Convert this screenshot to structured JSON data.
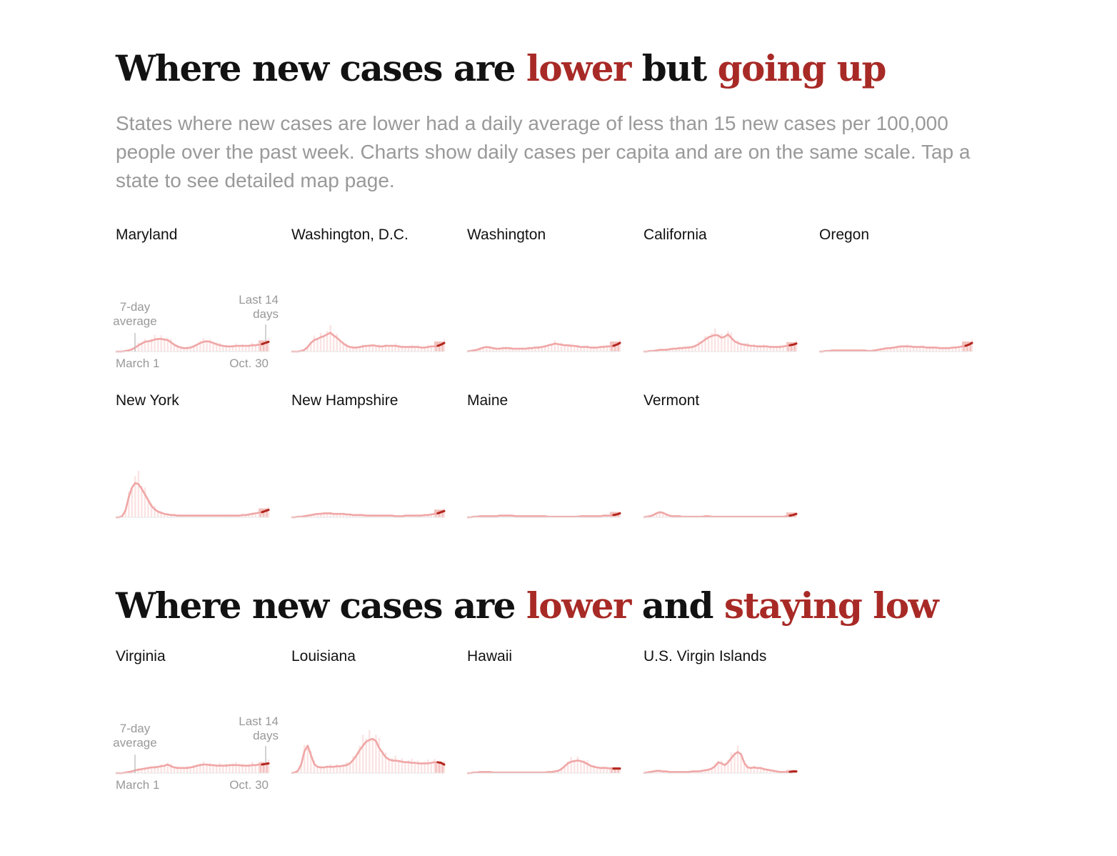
{
  "colors": {
    "accent": "#a82a26",
    "trend": "#f0a6a6",
    "bars": "#fbe3e3",
    "recent": "#b3261e",
    "recent_bg": "#f2c0bc",
    "muted": "#999999",
    "text": "#121212"
  },
  "sections": [
    {
      "title_parts": [
        {
          "text": "Where new cases are ",
          "hl": false
        },
        {
          "text": "lower",
          "hl": true
        },
        {
          "text": " but ",
          "hl": false
        },
        {
          "text": "going up",
          "hl": true
        }
      ],
      "description": "States where new cases are lower had a daily average of less than 15 new cases per 100,000 people over the past week. Charts show daily cases per capita and are on the same scale. Tap a state to see detailed map page."
    },
    {
      "title_parts": [
        {
          "text": "Where new cases are ",
          "hl": false
        },
        {
          "text": "lower",
          "hl": true
        },
        {
          "text": " and ",
          "hl": false
        },
        {
          "text": "staying low",
          "hl": true
        }
      ],
      "description": ""
    }
  ],
  "annotations": {
    "avg_line1": "7-day",
    "avg_line2": "average",
    "recent_line1": "Last 14",
    "recent_line2": "days",
    "start_date": "March 1",
    "end_date": "Oct. 30"
  },
  "chart_data": [
    {
      "type": "area",
      "state": "Maryland",
      "section": 0,
      "x_start": "March 1",
      "x_end": "Oct. 30",
      "ylim": [
        0,
        100
      ],
      "values": [
        0,
        0,
        0,
        1,
        2,
        4,
        7,
        11,
        14,
        17,
        18,
        19,
        21,
        22,
        22,
        21,
        20,
        16,
        12,
        9,
        7,
        6,
        6,
        7,
        9,
        12,
        15,
        17,
        18,
        17,
        15,
        13,
        11,
        10,
        9,
        9,
        9,
        10,
        10,
        10,
        10,
        10,
        11,
        11,
        12,
        13,
        15,
        17
      ]
    },
    {
      "type": "area",
      "state": "Washington, D.C.",
      "section": 0,
      "x_start": "March 1",
      "x_end": "Oct. 30",
      "ylim": [
        0,
        100
      ],
      "values": [
        0,
        0,
        0,
        1,
        3,
        8,
        15,
        20,
        22,
        25,
        27,
        30,
        33,
        28,
        24,
        19,
        14,
        10,
        8,
        7,
        7,
        8,
        9,
        10,
        10,
        11,
        10,
        9,
        9,
        10,
        10,
        10,
        10,
        9,
        8,
        8,
        8,
        8,
        8,
        8,
        7,
        7,
        8,
        9,
        9,
        10,
        12,
        15
      ]
    },
    {
      "type": "area",
      "state": "Washington",
      "section": 0,
      "x_start": "March 1",
      "x_end": "Oct. 30",
      "ylim": [
        0,
        100
      ],
      "values": [
        0,
        1,
        2,
        3,
        5,
        7,
        8,
        7,
        6,
        5,
        5,
        6,
        6,
        6,
        5,
        5,
        5,
        5,
        5,
        6,
        6,
        7,
        7,
        8,
        9,
        11,
        12,
        14,
        13,
        12,
        11,
        11,
        10,
        10,
        9,
        8,
        8,
        8,
        7,
        7,
        7,
        8,
        8,
        9,
        9,
        10,
        12,
        15
      ]
    },
    {
      "type": "area",
      "state": "California",
      "section": 0,
      "x_start": "March 1",
      "x_end": "Oct. 30",
      "ylim": [
        0,
        100
      ],
      "values": [
        0,
        0,
        1,
        1,
        2,
        3,
        3,
        3,
        4,
        5,
        5,
        6,
        6,
        7,
        7,
        8,
        10,
        13,
        17,
        21,
        25,
        27,
        29,
        28,
        24,
        26,
        30,
        24,
        18,
        15,
        13,
        12,
        11,
        10,
        10,
        9,
        9,
        9,
        9,
        8,
        8,
        8,
        8,
        9,
        10,
        11,
        12,
        14
      ]
    },
    {
      "type": "area",
      "state": "Oregon",
      "section": 0,
      "x_start": "March 1",
      "x_end": "Oct. 30",
      "ylim": [
        0,
        100
      ],
      "values": [
        0,
        0,
        1,
        1,
        2,
        2,
        2,
        2,
        2,
        2,
        2,
        2,
        2,
        2,
        2,
        1,
        1,
        2,
        3,
        4,
        5,
        6,
        6,
        7,
        8,
        9,
        9,
        9,
        9,
        8,
        8,
        8,
        8,
        7,
        7,
        7,
        7,
        6,
        6,
        6,
        6,
        7,
        7,
        8,
        9,
        10,
        12,
        15
      ]
    },
    {
      "type": "area",
      "state": "New York",
      "section": 0,
      "x_start": "March 1",
      "x_end": "Oct. 30",
      "ylim": [
        0,
        100
      ],
      "values": [
        0,
        0,
        2,
        12,
        35,
        52,
        60,
        58,
        50,
        40,
        30,
        20,
        14,
        10,
        8,
        6,
        5,
        4,
        4,
        3,
        3,
        3,
        3,
        3,
        3,
        3,
        3,
        3,
        3,
        3,
        3,
        3,
        3,
        3,
        3,
        3,
        3,
        3,
        3,
        4,
        4,
        5,
        6,
        7,
        8,
        9,
        11,
        13
      ]
    },
    {
      "type": "area",
      "state": "New Hampshire",
      "section": 0,
      "x_start": "March 1",
      "x_end": "Oct. 30",
      "ylim": [
        0,
        100
      ],
      "values": [
        0,
        0,
        1,
        1,
        2,
        3,
        4,
        5,
        6,
        6,
        7,
        7,
        7,
        6,
        6,
        6,
        6,
        5,
        5,
        4,
        4,
        4,
        4,
        3,
        3,
        3,
        3,
        3,
        3,
        3,
        3,
        3,
        2,
        2,
        2,
        3,
        3,
        3,
        3,
        3,
        3,
        4,
        4,
        5,
        6,
        7,
        9,
        11
      ]
    },
    {
      "type": "area",
      "state": "Maine",
      "section": 0,
      "x_start": "March 1",
      "x_end": "Oct. 30",
      "ylim": [
        0,
        100
      ],
      "values": [
        0,
        0,
        1,
        1,
        2,
        2,
        2,
        2,
        2,
        2,
        3,
        3,
        3,
        3,
        3,
        2,
        2,
        2,
        2,
        2,
        2,
        2,
        2,
        2,
        2,
        1,
        1,
        1,
        1,
        1,
        1,
        1,
        1,
        1,
        1,
        2,
        2,
        2,
        2,
        2,
        2,
        2,
        3,
        3,
        3,
        4,
        5,
        7
      ]
    },
    {
      "type": "area",
      "state": "Vermont",
      "section": 0,
      "x_start": "March 1",
      "x_end": "Oct. 30",
      "ylim": [
        0,
        100
      ],
      "values": [
        0,
        1,
        2,
        4,
        7,
        9,
        8,
        5,
        3,
        2,
        2,
        2,
        1,
        1,
        1,
        1,
        1,
        1,
        1,
        2,
        2,
        1,
        1,
        1,
        1,
        1,
        1,
        1,
        1,
        1,
        1,
        1,
        1,
        1,
        1,
        1,
        1,
        1,
        1,
        1,
        1,
        1,
        1,
        1,
        2,
        3,
        4,
        6
      ]
    },
    {
      "type": "area",
      "state": "Virginia",
      "section": 1,
      "x_start": "March 1",
      "x_end": "Oct. 30",
      "ylim": [
        0,
        100
      ],
      "values": [
        0,
        0,
        0,
        1,
        2,
        3,
        5,
        6,
        7,
        8,
        9,
        10,
        10,
        11,
        12,
        13,
        15,
        12,
        10,
        9,
        9,
        9,
        9,
        10,
        11,
        13,
        14,
        15,
        15,
        14,
        14,
        13,
        13,
        13,
        13,
        14,
        14,
        14,
        14,
        13,
        13,
        13,
        14,
        14,
        15,
        15,
        16,
        17
      ]
    },
    {
      "type": "area",
      "state": "Louisiana",
      "section": 1,
      "x_start": "March 1",
      "x_end": "Oct. 30",
      "ylim": [
        0,
        100
      ],
      "values": [
        0,
        1,
        4,
        15,
        38,
        48,
        32,
        16,
        11,
        10,
        10,
        11,
        11,
        11,
        12,
        12,
        13,
        14,
        17,
        23,
        31,
        40,
        48,
        55,
        58,
        60,
        56,
        44,
        36,
        28,
        24,
        22,
        22,
        21,
        20,
        19,
        19,
        18,
        18,
        17,
        17,
        17,
        17,
        18,
        19,
        19,
        18,
        15
      ]
    },
    {
      "type": "area",
      "state": "Hawaii",
      "section": 1,
      "x_start": "March 1",
      "x_end": "Oct. 30",
      "ylim": [
        0,
        100
      ],
      "values": [
        0,
        0,
        1,
        1,
        2,
        2,
        2,
        2,
        1,
        1,
        1,
        1,
        1,
        1,
        1,
        1,
        1,
        1,
        1,
        1,
        1,
        1,
        1,
        1,
        1,
        2,
        2,
        3,
        4,
        7,
        12,
        17,
        20,
        21,
        22,
        21,
        19,
        16,
        13,
        11,
        10,
        9,
        9,
        9,
        8,
        8,
        8,
        8
      ]
    },
    {
      "type": "area",
      "state": "U.S. Virgin Islands",
      "section": 1,
      "x_start": "March 1",
      "x_end": "Oct. 30",
      "ylim": [
        0,
        100
      ],
      "values": [
        0,
        1,
        2,
        3,
        4,
        4,
        3,
        3,
        2,
        2,
        2,
        2,
        2,
        2,
        2,
        3,
        3,
        3,
        4,
        5,
        6,
        8,
        12,
        19,
        17,
        14,
        19,
        26,
        33,
        37,
        33,
        18,
        10,
        9,
        10,
        9,
        9,
        7,
        6,
        5,
        4,
        3,
        2,
        2,
        2,
        2,
        3,
        3
      ]
    }
  ]
}
